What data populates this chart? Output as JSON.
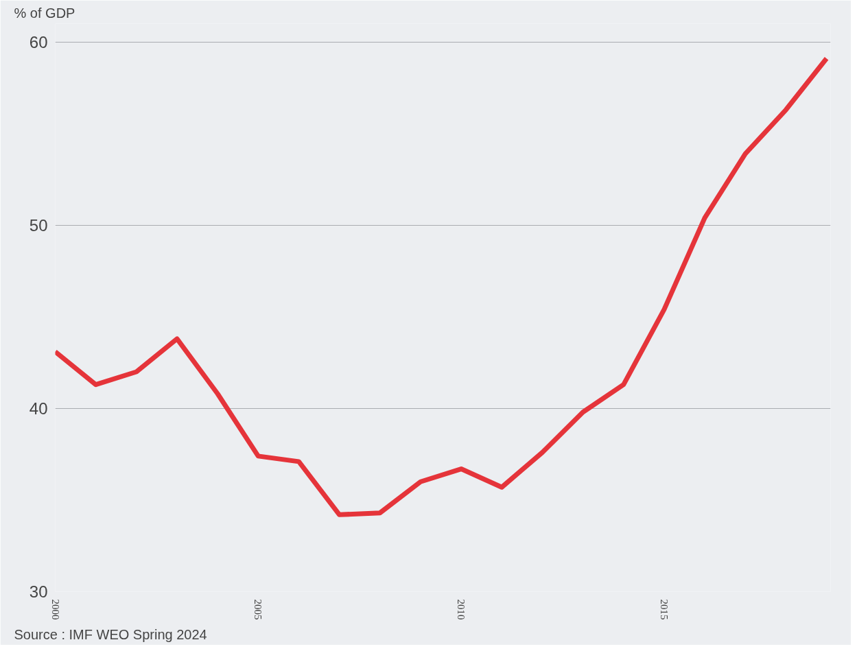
{
  "chart_data": {
    "type": "line",
    "ylabel": "% of GDP",
    "x": [
      2000,
      2001,
      2002,
      2003,
      2004,
      2005,
      2006,
      2007,
      2008,
      2009,
      2010,
      2011,
      2012,
      2013,
      2014,
      2015,
      2016,
      2017,
      2018,
      2019
    ],
    "series": [
      {
        "color": "#e5343a",
        "values": [
          43.1,
          41.3,
          42.0,
          43.8,
          40.8,
          37.4,
          37.1,
          34.2,
          34.3,
          36.0,
          36.7,
          35.7,
          37.6,
          39.8,
          41.3,
          45.4,
          50.4,
          53.9,
          56.3,
          59.1
        ]
      }
    ],
    "xlim": [
      2000,
      2019.1
    ],
    "xticks": [
      2000,
      2005,
      2010,
      2015
    ],
    "ylim": [
      30,
      61
    ],
    "yticks": [
      30,
      40,
      50,
      60
    ],
    "grid": "y",
    "marker": "none",
    "line_style": "solid",
    "annotations": [
      "Source :  IMF WEO Spring 2024"
    ]
  }
}
